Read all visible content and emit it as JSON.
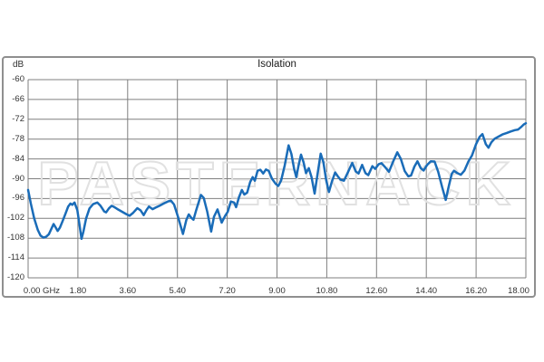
{
  "panel": {
    "title": "Isolation",
    "y_axis_unit": "dB"
  },
  "watermark": {
    "text": "PASTERNACK",
    "outline_color": "#e1e1e1"
  },
  "chart_data": {
    "type": "line",
    "title": "Isolation",
    "ylabel": "dB",
    "xlabel": "GHz",
    "xlim": [
      0,
      18
    ],
    "ylim": [
      -120,
      -60
    ],
    "grid": true,
    "grid_color": "#7f7f7f",
    "line_color": "#1a6cb8",
    "x_ticks": [
      {
        "value": 0,
        "label": "0.00 GHz"
      },
      {
        "value": 1.8,
        "label": "1.80"
      },
      {
        "value": 3.6,
        "label": "3.60"
      },
      {
        "value": 5.4,
        "label": "5.40"
      },
      {
        "value": 7.2,
        "label": "7.20"
      },
      {
        "value": 9.0,
        "label": "9.00"
      },
      {
        "value": 10.8,
        "label": "10.80"
      },
      {
        "value": 12.6,
        "label": "12.60"
      },
      {
        "value": 14.4,
        "label": "14.40"
      },
      {
        "value": 16.2,
        "label": "16.20"
      },
      {
        "value": 18.0,
        "label": "18.00"
      }
    ],
    "y_ticks": [
      {
        "value": -60,
        "label": "-60"
      },
      {
        "value": -66,
        "label": "-66"
      },
      {
        "value": -72,
        "label": "-72"
      },
      {
        "value": -78,
        "label": "-78"
      },
      {
        "value": -84,
        "label": "-84"
      },
      {
        "value": -90,
        "label": "-90"
      },
      {
        "value": -96,
        "label": "-96"
      },
      {
        "value": -102,
        "label": "-102"
      },
      {
        "value": -108,
        "label": "-108"
      },
      {
        "value": -114,
        "label": "-114"
      },
      {
        "value": -120,
        "label": "-120"
      }
    ],
    "series": [
      {
        "name": "Isolation",
        "points": [
          [
            0.0,
            -93.4
          ],
          [
            0.1,
            -97.5
          ],
          [
            0.22,
            -102.0
          ],
          [
            0.35,
            -105.5
          ],
          [
            0.45,
            -107.2
          ],
          [
            0.55,
            -107.8
          ],
          [
            0.65,
            -107.6
          ],
          [
            0.75,
            -106.8
          ],
          [
            0.85,
            -105.0
          ],
          [
            0.92,
            -103.7
          ],
          [
            1.0,
            -104.8
          ],
          [
            1.07,
            -105.8
          ],
          [
            1.15,
            -104.8
          ],
          [
            1.25,
            -102.8
          ],
          [
            1.35,
            -100.6
          ],
          [
            1.45,
            -98.4
          ],
          [
            1.53,
            -97.5
          ],
          [
            1.6,
            -97.9
          ],
          [
            1.68,
            -97.2
          ],
          [
            1.78,
            -99.5
          ],
          [
            1.86,
            -104.0
          ],
          [
            1.93,
            -108.2
          ],
          [
            2.0,
            -106.0
          ],
          [
            2.1,
            -102.0
          ],
          [
            2.22,
            -99.0
          ],
          [
            2.35,
            -97.7
          ],
          [
            2.5,
            -97.2
          ],
          [
            2.62,
            -98.2
          ],
          [
            2.75,
            -99.9
          ],
          [
            2.82,
            -100.2
          ],
          [
            2.92,
            -99.0
          ],
          [
            3.02,
            -98.2
          ],
          [
            3.12,
            -98.6
          ],
          [
            3.25,
            -99.3
          ],
          [
            3.4,
            -100.0
          ],
          [
            3.55,
            -100.7
          ],
          [
            3.67,
            -101.2
          ],
          [
            3.8,
            -100.3
          ],
          [
            3.95,
            -98.9
          ],
          [
            4.07,
            -99.6
          ],
          [
            4.18,
            -101.0
          ],
          [
            4.28,
            -99.5
          ],
          [
            4.37,
            -98.4
          ],
          [
            4.5,
            -99.2
          ],
          [
            4.62,
            -98.7
          ],
          [
            4.75,
            -98.2
          ],
          [
            4.9,
            -97.5
          ],
          [
            5.05,
            -96.9
          ],
          [
            5.16,
            -96.6
          ],
          [
            5.28,
            -97.8
          ],
          [
            5.42,
            -101.5
          ],
          [
            5.6,
            -106.7
          ],
          [
            5.72,
            -102.5
          ],
          [
            5.81,
            -100.8
          ],
          [
            5.9,
            -101.8
          ],
          [
            5.98,
            -102.4
          ],
          [
            6.08,
            -99.5
          ],
          [
            6.25,
            -94.9
          ],
          [
            6.35,
            -95.8
          ],
          [
            6.48,
            -100.0
          ],
          [
            6.62,
            -106.0
          ],
          [
            6.72,
            -101.5
          ],
          [
            6.85,
            -99.3
          ],
          [
            7.0,
            -103.3
          ],
          [
            7.12,
            -101.3
          ],
          [
            7.22,
            -100.0
          ],
          [
            7.33,
            -96.9
          ],
          [
            7.45,
            -97.2
          ],
          [
            7.52,
            -98.6
          ],
          [
            7.63,
            -95.5
          ],
          [
            7.73,
            -93.4
          ],
          [
            7.82,
            -94.8
          ],
          [
            7.92,
            -94.2
          ],
          [
            8.03,
            -91.0
          ],
          [
            8.12,
            -89.5
          ],
          [
            8.2,
            -90.6
          ],
          [
            8.3,
            -87.6
          ],
          [
            8.4,
            -87.3
          ],
          [
            8.5,
            -88.4
          ],
          [
            8.6,
            -87.2
          ],
          [
            8.7,
            -87.6
          ],
          [
            8.82,
            -90.0
          ],
          [
            8.95,
            -91.5
          ],
          [
            9.05,
            -92.2
          ],
          [
            9.15,
            -90.5
          ],
          [
            9.28,
            -86.0
          ],
          [
            9.42,
            -79.9
          ],
          [
            9.52,
            -82.5
          ],
          [
            9.62,
            -87.0
          ],
          [
            9.7,
            -89.5
          ],
          [
            9.78,
            -86.0
          ],
          [
            9.87,
            -82.7
          ],
          [
            9.96,
            -85.0
          ],
          [
            10.05,
            -88.3
          ],
          [
            10.15,
            -86.8
          ],
          [
            10.25,
            -89.5
          ],
          [
            10.36,
            -94.5
          ],
          [
            10.46,
            -89.0
          ],
          [
            10.58,
            -82.4
          ],
          [
            10.68,
            -85.0
          ],
          [
            10.78,
            -90.5
          ],
          [
            10.88,
            -94.0
          ],
          [
            10.98,
            -91.0
          ],
          [
            11.1,
            -88.1
          ],
          [
            11.2,
            -89.3
          ],
          [
            11.3,
            -90.3
          ],
          [
            11.42,
            -90.6
          ],
          [
            11.55,
            -88.3
          ],
          [
            11.72,
            -85.2
          ],
          [
            11.85,
            -87.8
          ],
          [
            11.95,
            -88.4
          ],
          [
            12.08,
            -85.8
          ],
          [
            12.2,
            -88.3
          ],
          [
            12.3,
            -88.9
          ],
          [
            12.45,
            -86.2
          ],
          [
            12.55,
            -87.0
          ],
          [
            12.68,
            -85.6
          ],
          [
            12.78,
            -85.3
          ],
          [
            12.92,
            -86.6
          ],
          [
            13.05,
            -87.9
          ],
          [
            13.2,
            -84.8
          ],
          [
            13.35,
            -82.0
          ],
          [
            13.48,
            -84.0
          ],
          [
            13.62,
            -87.7
          ],
          [
            13.75,
            -89.3
          ],
          [
            13.85,
            -89.0
          ],
          [
            13.97,
            -86.3
          ],
          [
            14.08,
            -84.7
          ],
          [
            14.2,
            -86.8
          ],
          [
            14.3,
            -87.5
          ],
          [
            14.43,
            -85.8
          ],
          [
            14.56,
            -84.7
          ],
          [
            14.7,
            -84.8
          ],
          [
            14.83,
            -87.9
          ],
          [
            14.97,
            -92.5
          ],
          [
            15.1,
            -96.4
          ],
          [
            15.22,
            -92.0
          ],
          [
            15.32,
            -88.5
          ],
          [
            15.4,
            -87.6
          ],
          [
            15.52,
            -88.3
          ],
          [
            15.65,
            -88.8
          ],
          [
            15.78,
            -87.5
          ],
          [
            15.92,
            -84.8
          ],
          [
            16.05,
            -83.0
          ],
          [
            16.2,
            -79.5
          ],
          [
            16.33,
            -77.3
          ],
          [
            16.43,
            -76.5
          ],
          [
            16.55,
            -79.5
          ],
          [
            16.65,
            -80.6
          ],
          [
            16.75,
            -79.0
          ],
          [
            16.87,
            -77.9
          ],
          [
            17.0,
            -77.3
          ],
          [
            17.15,
            -76.6
          ],
          [
            17.3,
            -76.2
          ],
          [
            17.45,
            -75.7
          ],
          [
            17.6,
            -75.3
          ],
          [
            17.72,
            -75.1
          ],
          [
            17.82,
            -74.4
          ],
          [
            17.92,
            -73.6
          ],
          [
            18.0,
            -73.2
          ]
        ]
      }
    ]
  }
}
